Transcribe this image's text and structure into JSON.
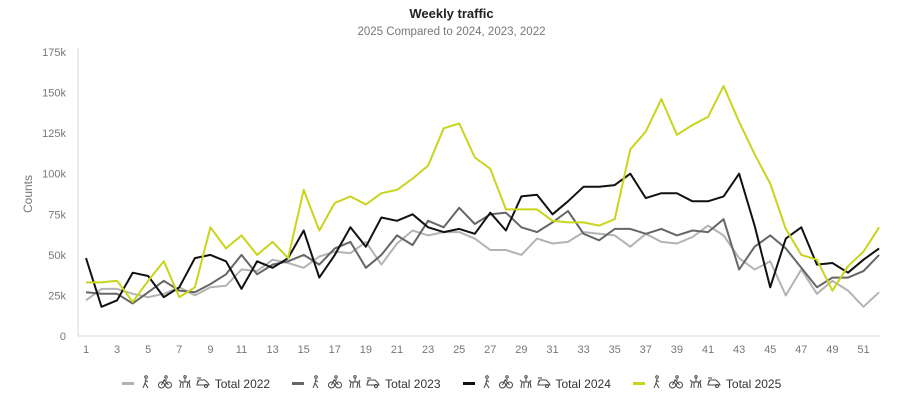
{
  "chart_data": {
    "type": "line",
    "title": "Weekly traffic",
    "subtitle": "2025 Compared to 2024, 2023, 2022",
    "xlabel": "",
    "ylabel": "Counts",
    "ylim": [
      0,
      175000
    ],
    "yticks": [
      "0",
      "25k",
      "50k",
      "75k",
      "100k",
      "125k",
      "150k",
      "175k"
    ],
    "ytick_values": [
      0,
      25000,
      50000,
      75000,
      100000,
      125000,
      150000,
      175000
    ],
    "x": [
      1,
      2,
      3,
      4,
      5,
      6,
      7,
      8,
      9,
      10,
      11,
      12,
      13,
      14,
      15,
      16,
      17,
      18,
      19,
      20,
      21,
      22,
      23,
      24,
      25,
      26,
      27,
      28,
      29,
      30,
      31,
      32,
      33,
      34,
      35,
      36,
      37,
      38,
      39,
      40,
      41,
      42,
      43,
      44,
      45,
      46,
      47,
      48,
      49,
      50,
      51,
      52
    ],
    "xticks": [
      "1",
      "3",
      "5",
      "7",
      "9",
      "11",
      "13",
      "15",
      "17",
      "19",
      "21",
      "23",
      "25",
      "27",
      "29",
      "31",
      "33",
      "35",
      "37",
      "39",
      "41",
      "43",
      "45",
      "47",
      "49",
      "51"
    ],
    "grid": false,
    "legend_position": "bottom",
    "legend_icons": [
      "pedestrian-icon",
      "bicycle-icon",
      "horse-rider-icon",
      "car-icon"
    ],
    "series": [
      {
        "name": "Total 2022",
        "color": "#b3b3b3",
        "values": [
          22000,
          29000,
          29000,
          26000,
          24000,
          26000,
          30000,
          25000,
          30000,
          31000,
          41000,
          40000,
          47000,
          45000,
          42000,
          49000,
          52000,
          51000,
          58000,
          44000,
          57000,
          65000,
          62000,
          64000,
          64000,
          60000,
          53000,
          53000,
          50000,
          60000,
          57000,
          58000,
          64000,
          63000,
          62000,
          55000,
          63000,
          58000,
          57000,
          61000,
          68000,
          62000,
          48000,
          41000,
          46000,
          25000,
          41000,
          26000,
          34000,
          28000,
          18000,
          27000
        ]
      },
      {
        "name": "Total 2023",
        "color": "#666666",
        "values": [
          27000,
          26000,
          26000,
          20000,
          27000,
          34000,
          28000,
          27000,
          32000,
          38000,
          50000,
          38000,
          44000,
          46000,
          50000,
          44000,
          54000,
          58000,
          42000,
          50000,
          62000,
          56000,
          71000,
          67000,
          79000,
          69000,
          75000,
          76000,
          67000,
          64000,
          70000,
          77000,
          63000,
          59000,
          66000,
          66000,
          63000,
          66000,
          62000,
          65000,
          64000,
          72000,
          41000,
          55000,
          62000,
          54000,
          42000,
          30000,
          36000,
          36000,
          40000,
          50000
        ]
      },
      {
        "name": "Total 2024",
        "color": "#111111",
        "values": [
          48000,
          18000,
          22000,
          39000,
          37000,
          24000,
          30000,
          48000,
          50000,
          46000,
          29000,
          46000,
          42000,
          48000,
          65000,
          36000,
          50000,
          67000,
          55000,
          73000,
          71000,
          75000,
          67000,
          64000,
          66000,
          63000,
          76000,
          65000,
          86000,
          87000,
          75000,
          83000,
          92000,
          92000,
          93000,
          100000,
          85000,
          88000,
          88000,
          83000,
          83000,
          86000,
          100000,
          68000,
          30000,
          60000,
          67000,
          44000,
          45000,
          39000,
          47000,
          54000
        ]
      },
      {
        "name": "Total 2025",
        "color": "#c9d41c",
        "values": [
          33000,
          33000,
          34000,
          21000,
          34000,
          46000,
          24000,
          30000,
          67000,
          54000,
          62000,
          50000,
          58000,
          48000,
          90000,
          65000,
          82000,
          86000,
          81000,
          88000,
          90000,
          97000,
          105000,
          128000,
          131000,
          110000,
          103000,
          78000,
          78000,
          78000,
          71000,
          70000,
          70000,
          68000,
          72000,
          115000,
          126000,
          146000,
          124000,
          130000,
          135000,
          154000,
          132000,
          112000,
          94000,
          66000,
          50000,
          47000,
          28000,
          43000,
          52000,
          67000
        ]
      }
    ]
  }
}
